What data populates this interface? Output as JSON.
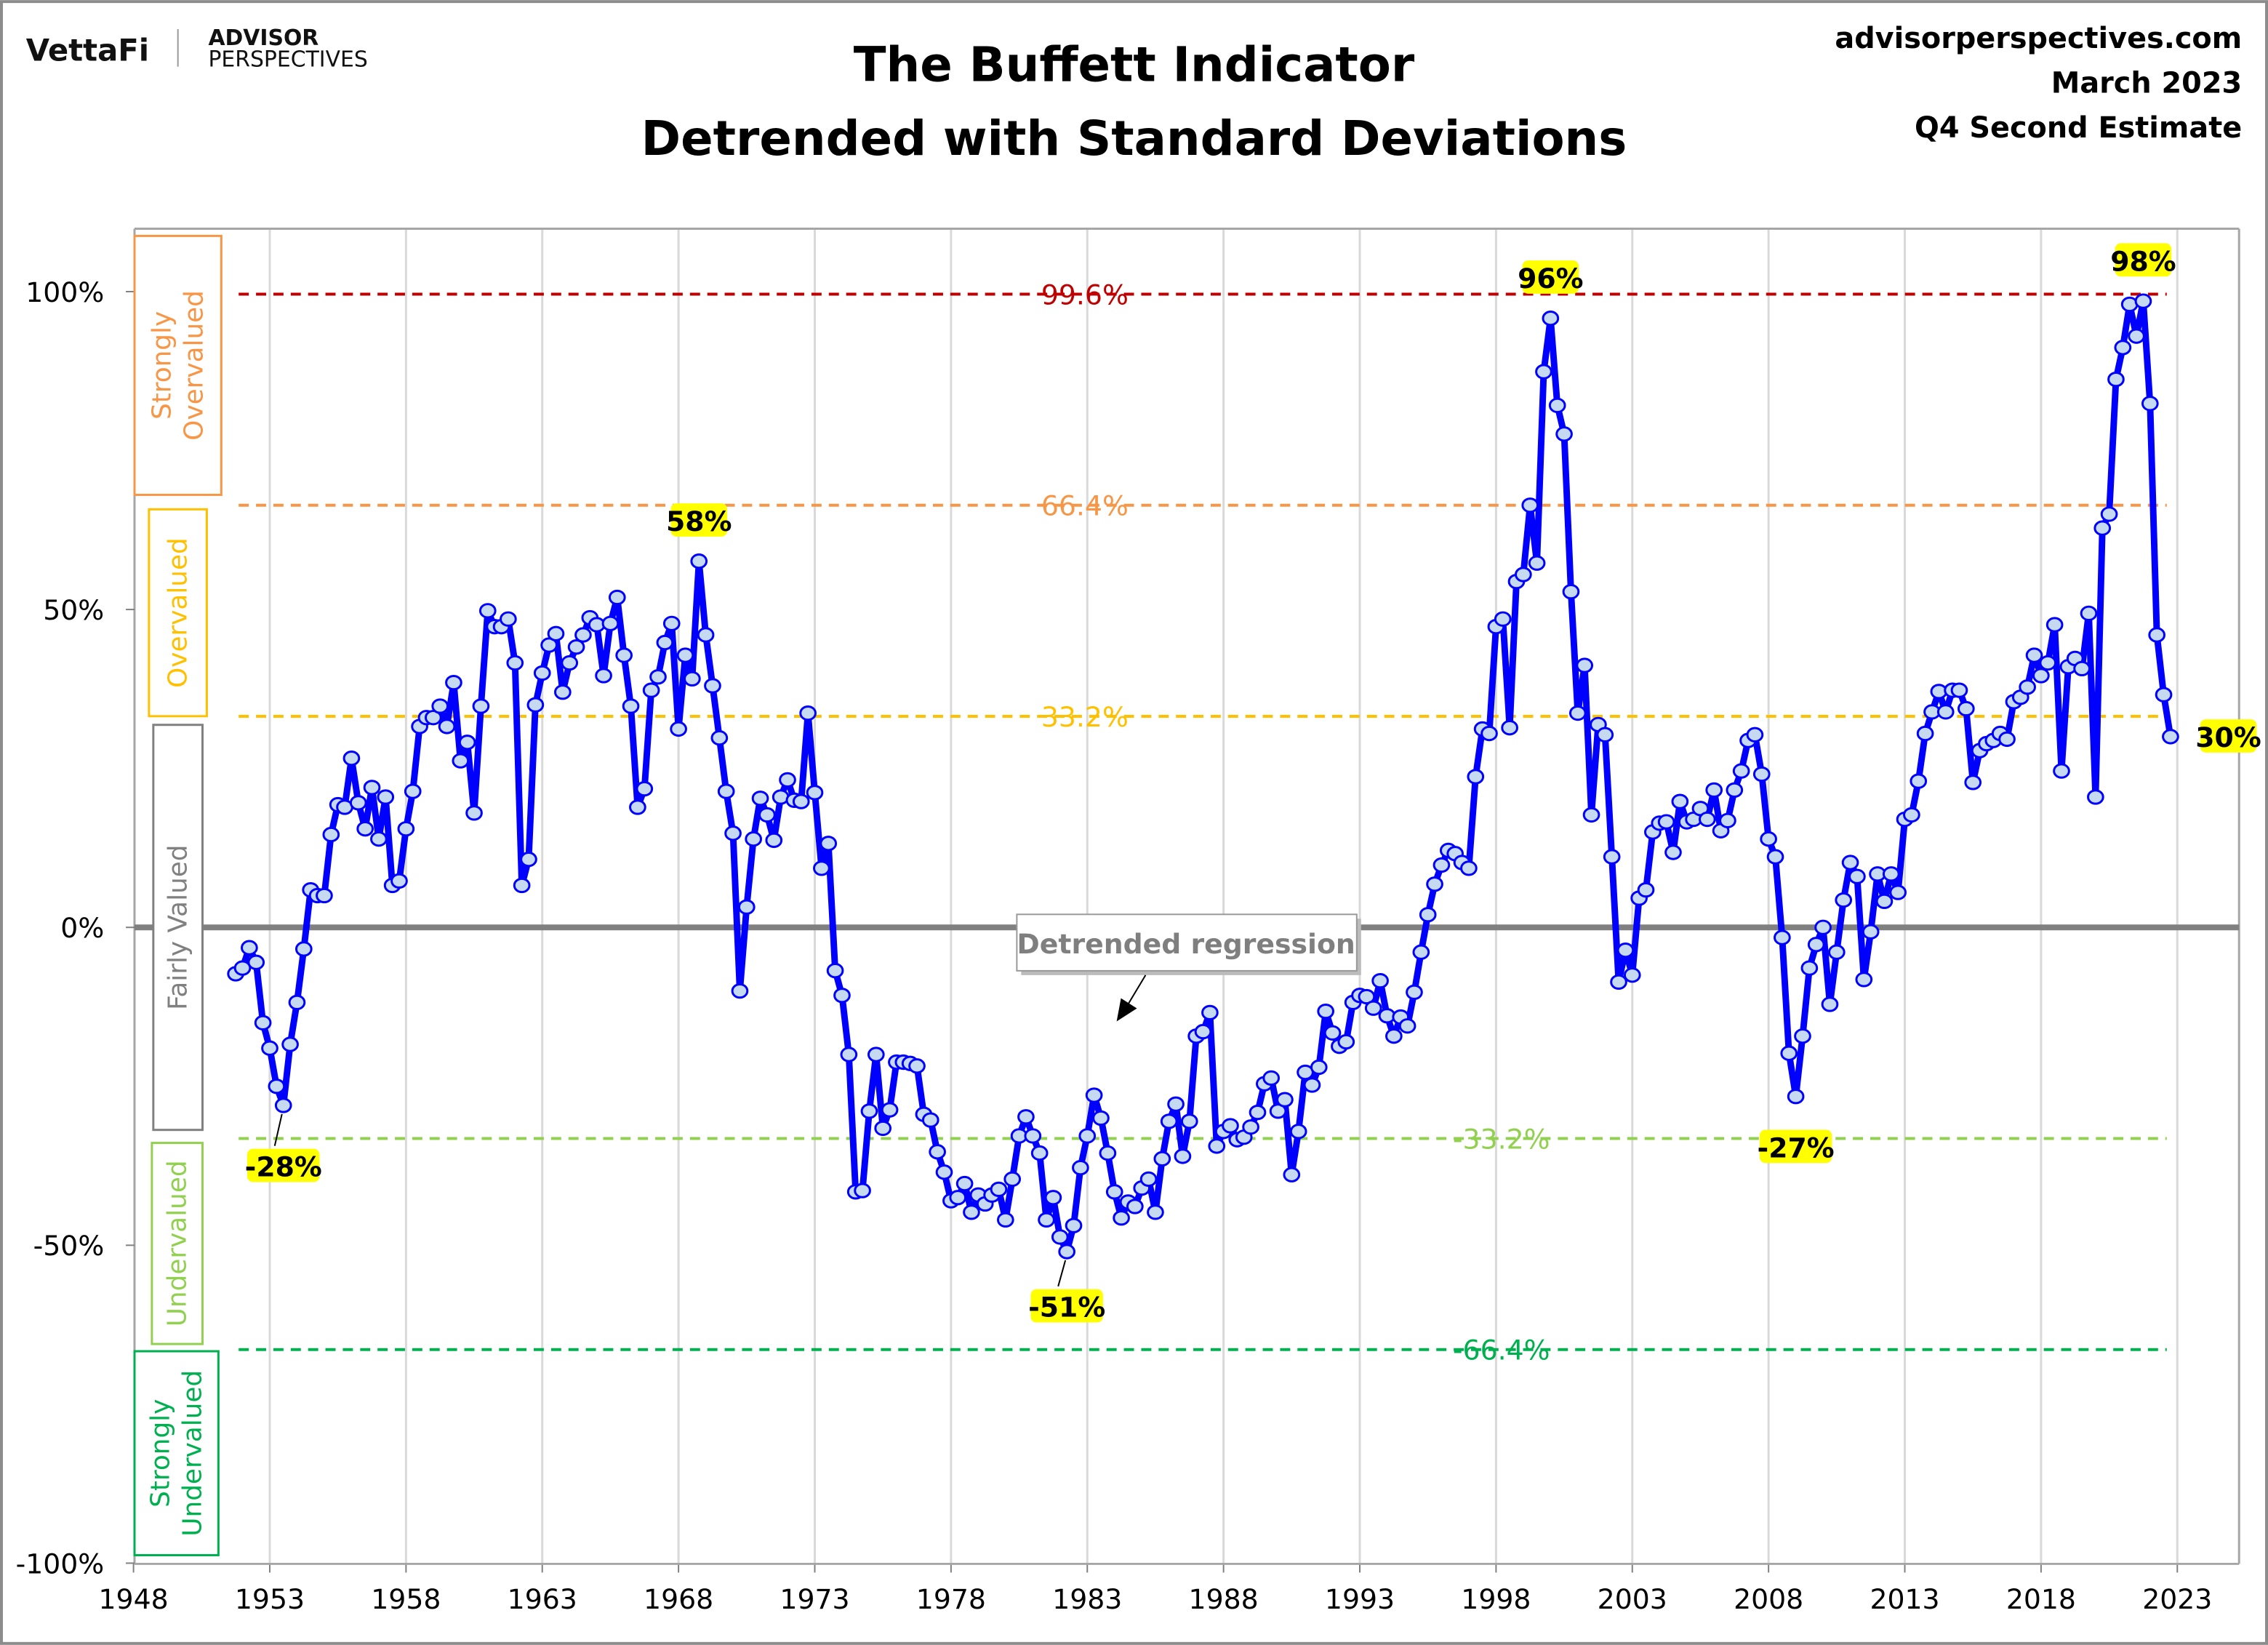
{
  "header": {
    "logo_vettafi": "VettaFi",
    "logo_advisor": "ADVISOR",
    "logo_perspectives": "PERSPECTIVES",
    "site": "advisorperspectives.com",
    "date": "March 2023",
    "estimate": "Q4 Second Estimate"
  },
  "chart_data": {
    "type": "line",
    "title": "The Buffett Indicator",
    "subtitle": "Detrended with Standard Deviations",
    "xlim": [
      1948,
      2023
    ],
    "ylim": [
      -100,
      100
    ],
    "x_ticks": [
      "1948",
      "1953",
      "1958",
      "1963",
      "1968",
      "1973",
      "1978",
      "1983",
      "1988",
      "1993",
      "1998",
      "2003",
      "2008",
      "2013",
      "2018",
      "2023"
    ],
    "y_ticks": [
      "100%",
      "50%",
      "0%",
      "-50%",
      "-100%"
    ],
    "y_tick_values": [
      100,
      50,
      0,
      -50,
      -100
    ],
    "grid": "vertical",
    "line_color": "#0000FF",
    "marker_fill": "#C5D9F1",
    "zero_line": {
      "value": 0,
      "color": "#808080"
    },
    "std_lines": [
      {
        "value": 99.6,
        "label": "99.6%",
        "color": "#C00000"
      },
      {
        "value": 66.4,
        "label": "66.4%",
        "color": "#F79646"
      },
      {
        "value": 33.2,
        "label": "33.2%",
        "color": "#FFC000"
      },
      {
        "value": -33.2,
        "label": "-33.2%",
        "color": "#92D050"
      },
      {
        "value": -66.4,
        "label": "-66.4%",
        "color": "#00B050"
      }
    ],
    "zones": [
      {
        "label_lines": [
          "Strongly",
          "Overvalued"
        ],
        "color": "#F79646"
      },
      {
        "label_lines": [
          "Overvalued"
        ],
        "color": "#FFC000"
      },
      {
        "label_lines": [
          "Fairly Valued"
        ],
        "color": "#808080"
      },
      {
        "label_lines": [
          "Undervalued"
        ],
        "color": "#92D050"
      },
      {
        "label_lines": [
          "Strongly",
          "Undervalued"
        ],
        "color": "#00B050"
      }
    ],
    "annotation": "Detrended regression",
    "callouts": [
      {
        "label": "-28%",
        "x": 1953.5,
        "y": -28
      },
      {
        "label": "58%",
        "x": 1968.75,
        "y": 57.6
      },
      {
        "label": "-51%",
        "x": 1982.25,
        "y": -51
      },
      {
        "label": "96%",
        "x": 2000.0,
        "y": 95.8
      },
      {
        "label": "-27%",
        "x": 2009.0,
        "y": -26.6
      },
      {
        "label": "98%",
        "x": 2021.75,
        "y": 98.5
      },
      {
        "label": "30%",
        "x": 2022.75,
        "y": 30
      }
    ],
    "highlight_color": "#FFFF00",
    "x": [
      1951.75,
      1952,
      1952.25,
      1952.5,
      1952.75,
      1953,
      1953.25,
      1953.5,
      1953.75,
      1954,
      1954.25,
      1954.5,
      1954.75,
      1955,
      1955.25,
      1955.5,
      1955.75,
      1956,
      1956.25,
      1956.5,
      1956.75,
      1957,
      1957.25,
      1957.5,
      1957.75,
      1958,
      1958.25,
      1958.5,
      1958.75,
      1959,
      1959.25,
      1959.5,
      1959.75,
      1960,
      1960.25,
      1960.5,
      1960.75,
      1961,
      1961.25,
      1961.5,
      1961.75,
      1962,
      1962.25,
      1962.5,
      1962.75,
      1963,
      1963.25,
      1963.5,
      1963.75,
      1964,
      1964.25,
      1964.5,
      1964.75,
      1965,
      1965.25,
      1965.5,
      1965.75,
      1966,
      1966.25,
      1966.5,
      1966.75,
      1967,
      1967.25,
      1967.5,
      1967.75,
      1968,
      1968.25,
      1968.5,
      1968.75,
      1969,
      1969.25,
      1969.5,
      1969.75,
      1970,
      1970.25,
      1970.5,
      1970.75,
      1971,
      1971.25,
      1971.5,
      1971.75,
      1972,
      1972.25,
      1972.5,
      1972.75,
      1973,
      1973.25,
      1973.5,
      1973.75,
      1974,
      1974.25,
      1974.5,
      1974.75,
      1975,
      1975.25,
      1975.5,
      1975.75,
      1976,
      1976.25,
      1976.5,
      1976.75,
      1977,
      1977.25,
      1977.5,
      1977.75,
      1978,
      1978.25,
      1978.5,
      1978.75,
      1979,
      1979.25,
      1979.5,
      1979.75,
      1980,
      1980.25,
      1980.5,
      1980.75,
      1981,
      1981.25,
      1981.5,
      1981.75,
      1982,
      1982.25,
      1982.5,
      1982.75,
      1983,
      1983.25,
      1983.5,
      1983.75,
      1984,
      1984.25,
      1984.5,
      1984.75,
      1985,
      1985.25,
      1985.5,
      1985.75,
      1986,
      1986.25,
      1986.5,
      1986.75,
      1987,
      1987.25,
      1987.5,
      1987.75,
      1988,
      1988.25,
      1988.5,
      1988.75,
      1989,
      1989.25,
      1989.5,
      1989.75,
      1990,
      1990.25,
      1990.5,
      1990.75,
      1991,
      1991.25,
      1991.5,
      1991.75,
      1992,
      1992.25,
      1992.5,
      1992.75,
      1993,
      1993.25,
      1993.5,
      1993.75,
      1994,
      1994.25,
      1994.5,
      1994.75,
      1995,
      1995.25,
      1995.5,
      1995.75,
      1996,
      1996.25,
      1996.5,
      1996.75,
      1997,
      1997.25,
      1997.5,
      1997.75,
      1998,
      1998.25,
      1998.5,
      1998.75,
      1999,
      1999.25,
      1999.5,
      1999.75,
      2000,
      2000.25,
      2000.5,
      2000.75,
      2001,
      2001.25,
      2001.5,
      2001.75,
      2002,
      2002.25,
      2002.5,
      2002.75,
      2003,
      2003.25,
      2003.5,
      2003.75,
      2004,
      2004.25,
      2004.5,
      2004.75,
      2005,
      2005.25,
      2005.5,
      2005.75,
      2006,
      2006.25,
      2006.5,
      2006.75,
      2007,
      2007.25,
      2007.5,
      2007.75,
      2008,
      2008.25,
      2008.5,
      2008.75,
      2009,
      2009.25,
      2009.5,
      2009.75,
      2010,
      2010.25,
      2010.5,
      2010.75,
      2011,
      2011.25,
      2011.5,
      2011.75,
      2012,
      2012.25,
      2012.5,
      2012.75,
      2013,
      2013.25,
      2013.5,
      2013.75,
      2014,
      2014.25,
      2014.5,
      2014.75,
      2015,
      2015.25,
      2015.5,
      2015.75,
      2016,
      2016.25,
      2016.5,
      2016.75,
      2017,
      2017.25,
      2017.5,
      2017.75,
      2018,
      2018.25,
      2018.5,
      2018.75,
      2019,
      2019.25,
      2019.5,
      2019.75,
      2020,
      2020.25,
      2020.5,
      2020.75,
      2021,
      2021.25,
      2021.5,
      2021.75,
      2022,
      2022.25,
      2022.5,
      2022.75
    ],
    "values": [
      -7.3,
      -6.4,
      -3.2,
      -5.5,
      -15,
      -19,
      -25,
      -28,
      -18.4,
      -11.8,
      -3.4,
      5.9,
      5,
      5,
      14.6,
      19.3,
      18.9,
      26.6,
      19.6,
      15.5,
      22,
      13.9,
      20.5,
      6.6,
      7.3,
      15.5,
      21.4,
      31.6,
      33,
      33,
      34.8,
      31.6,
      38.5,
      26.2,
      29.1,
      18,
      34.8,
      49.8,
      47.3,
      47.3,
      48.5,
      41.6,
      6.6,
      10.7,
      35,
      40,
      44.4,
      46.2,
      37,
      41.6,
      44.1,
      46,
      48.7,
      47.6,
      39.6,
      47.8,
      51.9,
      42.8,
      34.8,
      18.9,
      21.8,
      37.3,
      39.4,
      44.8,
      47.8,
      31.2,
      42.8,
      39.1,
      57.6,
      46,
      38,
      29.8,
      21.4,
      14.8,
      -10,
      3.2,
      13.9,
      20.3,
      17.7,
      13.7,
      20.5,
      23.2,
      20,
      19.8,
      33.7,
      21.2,
      9.3,
      13.2,
      -6.8,
      -10.7,
      -20,
      -41.6,
      -41.4,
      -28.9,
      -20,
      -31.6,
      -28.7,
      -21.2,
      -21.2,
      -21.4,
      -21.8,
      -29.4,
      -30.3,
      -35.3,
      -38.5,
      -43,
      -42.5,
      -40.3,
      -44.8,
      -42.1,
      -43.5,
      -42.1,
      -41.2,
      -46,
      -39.6,
      -32.8,
      -29.8,
      -32.8,
      -35.5,
      -46,
      -42.5,
      -48.7,
      -51,
      -46.9,
      -37.8,
      -32.8,
      -26.4,
      -30,
      -35.5,
      -41.6,
      -45.7,
      -43.2,
      -43.9,
      -41,
      -39.6,
      -44.8,
      -36.4,
      -30.5,
      -27.8,
      -36,
      -30.5,
      -17.1,
      -16.4,
      -13.4,
      -34.4,
      -32.1,
      -31.2,
      -33.4,
      -33,
      -31.4,
      -29.1,
      -24.6,
      -23.7,
      -28.9,
      -27.1,
      -38.9,
      -32.1,
      -22.8,
      -24.8,
      -22,
      -13.2,
      -16.6,
      -18.7,
      -18,
      -11.8,
      -10.7,
      -10.9,
      -12.7,
      -8.4,
      -13.9,
      -17.1,
      -14.1,
      -15.5,
      -10.2,
      -3.9,
      2,
      6.8,
      9.8,
      12.1,
      11.6,
      10.2,
      9.3,
      23.7,
      31.2,
      30.5,
      47.3,
      48.5,
      31.4,
      54.4,
      55.5,
      66.4,
      57.3,
      87.4,
      95.8,
      82.1,
      77.6,
      52.8,
      33.7,
      41.2,
      17.7,
      31.9,
      30.3,
      11.1,
      -8.6,
      -3.6,
      -7.5,
      4.6,
      5.9,
      15,
      16.4,
      16.6,
      11.8,
      19.8,
      16.6,
      17,
      18.7,
      17,
      21.6,
      15.2,
      16.8,
      21.6,
      24.6,
      29.4,
      30.3,
      24.1,
      13.9,
      11.1,
      -1.6,
      -19.8,
      -26.6,
      -17.1,
      -6.4,
      -2.7,
      0,
      -12.1,
      -3.9,
      4.3,
      10.2,
      8,
      -8.2,
      -0.7,
      8.4,
      4.1,
      8.4,
      5.5,
      17,
      17.7,
      23,
      30.5,
      33.9,
      37.1,
      33.9,
      37.3,
      37.3,
      34.4,
      22.8,
      27.8,
      28.9,
      29.4,
      30.5,
      29.6,
      35.5,
      36.2,
      37.8,
      42.8,
      39.6,
      41.6,
      47.6,
      24.6,
      41,
      42.3,
      40.7,
      49.4,
      20.5,
      62.8,
      65,
      86.2,
      91.2,
      98,
      93,
      98.5,
      82.4,
      46,
      36.6,
      30
    ]
  }
}
